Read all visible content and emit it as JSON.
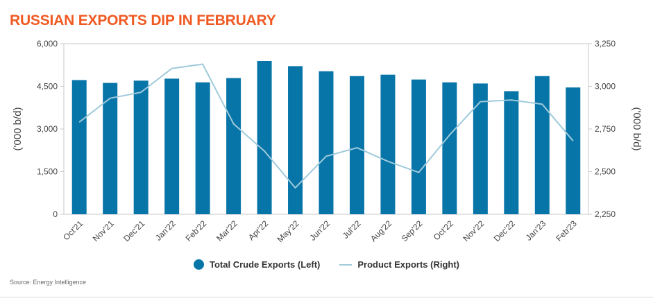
{
  "header": {
    "title": "RUSSIAN EXPORTS DIP IN FEBRUARY"
  },
  "chart_data": {
    "type": "bar",
    "title": "RUSSIAN EXPORTS DIP IN FEBRUARY",
    "categories": [
      "Oct'21",
      "Nov'21",
      "Dec'21",
      "Jan'22",
      "Feb'22",
      "Mar'22",
      "Apr'22",
      "May'22",
      "Jun'22",
      "Jul'22",
      "Aug'22",
      "Sep'22",
      "Oct'22",
      "Nov'22",
      "Dec'22",
      "Jan'23",
      "Feb'23"
    ],
    "series": [
      {
        "name": "Total Crude Exports (Left)",
        "type": "bar",
        "axis": "left",
        "color": "#0875a8",
        "values": [
          4720,
          4620,
          4700,
          4770,
          4640,
          4790,
          5390,
          5210,
          5030,
          4860,
          4910,
          4740,
          4640,
          4600,
          4330,
          4860,
          4460
        ]
      },
      {
        "name": "Product Exports (Right)",
        "type": "line",
        "axis": "right",
        "color": "#9fcadb",
        "values": [
          2790,
          2930,
          2965,
          3105,
          3130,
          2780,
          2620,
          2405,
          2590,
          2640,
          2560,
          2495,
          2715,
          2910,
          2920,
          2895,
          2680
        ]
      }
    ],
    "y_left": {
      "label": "('000 b/d)",
      "min": 0,
      "max": 6000,
      "ticks": [
        "0",
        "1,500",
        "3,000",
        "4,500",
        "6,000"
      ]
    },
    "y_right": {
      "label": "('000 b/d)",
      "min": 2250,
      "max": 3250,
      "ticks": [
        "2,250",
        "2,500",
        "2,750",
        "3,000",
        "3,250"
      ]
    },
    "legend_position": "bottom-center",
    "grid": false
  },
  "legend": {
    "crude_label": "Total Crude Exports (Left)",
    "product_label": "Product Exports (Right)"
  },
  "footer": {
    "source": "Source: Energy Intelligence"
  }
}
